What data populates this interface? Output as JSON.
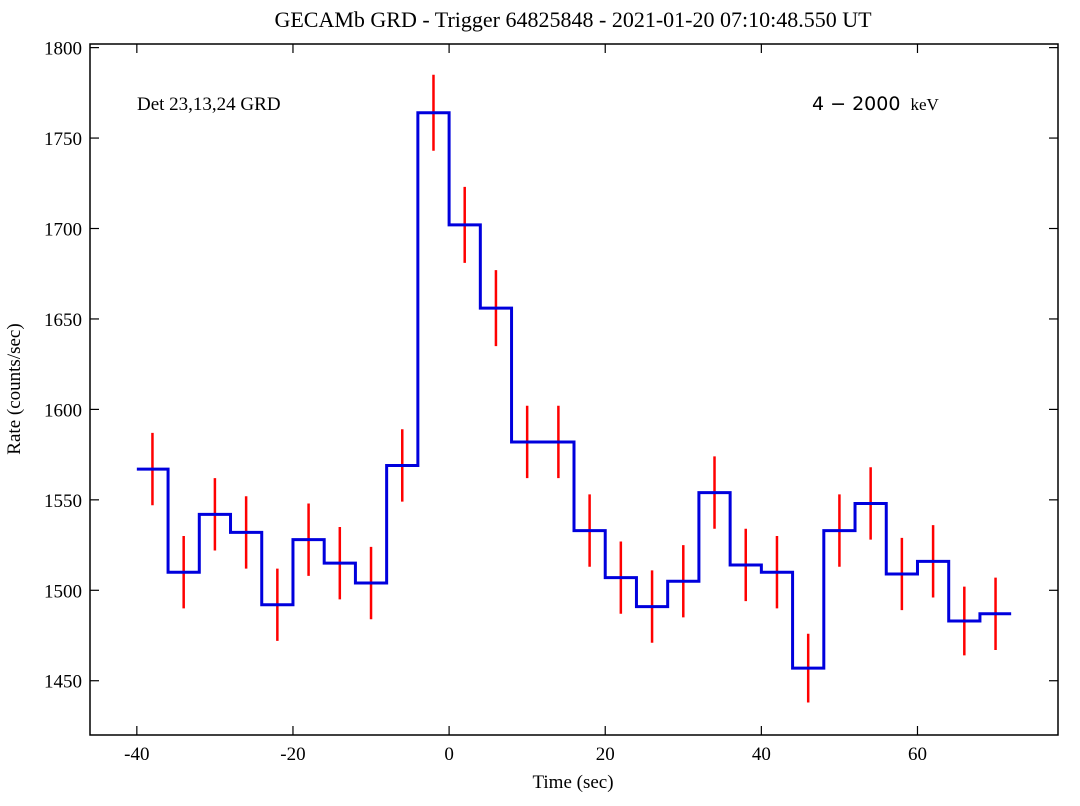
{
  "chart_data": {
    "type": "line",
    "style": "step histogram with error bars",
    "title": "GECAMb GRD - Trigger 64825848 - 2021-01-20 07:10:48.550 UT",
    "xlabel": "Time (sec)",
    "ylabel": "Rate (counts/sec)",
    "xlim": [
      -46,
      78
    ],
    "ylim": [
      1420,
      1802
    ],
    "xticks": [
      -40,
      -20,
      0,
      20,
      40,
      60
    ],
    "xtick_labels": [
      "-40",
      "-20",
      "0",
      "20",
      "40",
      "60"
    ],
    "yticks": [
      1450,
      1500,
      1550,
      1600,
      1650,
      1700,
      1750,
      1800
    ],
    "ytick_labels": [
      "1450",
      "1500",
      "1550",
      "1600",
      "1650",
      "1700",
      "1750",
      "1800"
    ],
    "grid": false,
    "annotations": {
      "detector": "Det 23,13,24 GRD",
      "energy_range": "4 − 2000",
      "energy_unit": "keV"
    },
    "bin_width": 4,
    "series": [
      {
        "x": [
          -38,
          -34,
          -30,
          -26,
          -22,
          -18,
          -14,
          -10,
          -6,
          -2,
          2,
          6,
          10,
          14,
          18,
          22,
          26,
          30,
          34,
          38,
          42,
          46,
          50,
          54,
          58,
          62,
          66,
          70
        ],
        "values": [
          1567,
          1510,
          1542,
          1532,
          1492,
          1528,
          1515,
          1504,
          1569,
          1764,
          1702,
          1656,
          1582,
          1582,
          1533,
          1507,
          1491,
          1505,
          1554,
          1514,
          1510,
          1457,
          1533,
          1548,
          1509,
          1516,
          1483,
          1487
        ],
        "errors": [
          20,
          20,
          20,
          20,
          20,
          20,
          20,
          20,
          20,
          21,
          21,
          21,
          20,
          20,
          20,
          20,
          20,
          20,
          20,
          20,
          20,
          19,
          20,
          20,
          20,
          20,
          19,
          20
        ]
      }
    ],
    "colors": {
      "step_line": "#0000dd",
      "error_bars": "#ff0000",
      "axes": "#000000"
    }
  }
}
